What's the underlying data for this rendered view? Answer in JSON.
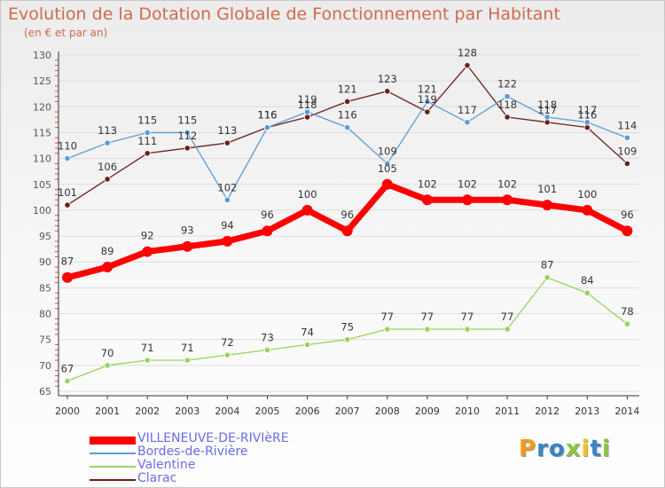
{
  "chart_data": {
    "type": "line",
    "title": "Evolution de la Dotation Globale de Fonctionnement par Habitant",
    "subtitle": "(en € et par an)",
    "x": [
      2000,
      2001,
      2002,
      2003,
      2004,
      2005,
      2006,
      2007,
      2008,
      2009,
      2010,
      2011,
      2012,
      2013,
      2014
    ],
    "ylim": [
      65,
      130
    ],
    "yticks": [
      65,
      70,
      75,
      80,
      85,
      90,
      95,
      100,
      105,
      110,
      115,
      120,
      125,
      130
    ],
    "grid": "horizontal",
    "legend_position": "bottom-left",
    "series": [
      {
        "name": "VILLENEUVE-DE-RIVIèRE",
        "color": "#ff0000",
        "values": [
          87,
          89,
          92,
          93,
          94,
          96,
          100,
          96,
          105,
          102,
          102,
          102,
          101,
          100,
          96
        ]
      },
      {
        "name": "Bordes-de-Rivière",
        "color": "#5b9bd5",
        "values": [
          110,
          113,
          115,
          115,
          102,
          116,
          119,
          116,
          109,
          121,
          117,
          122,
          118,
          117,
          114
        ]
      },
      {
        "name": "Valentine",
        "color": "#97d35d",
        "values": [
          67,
          70,
          71,
          71,
          72,
          73,
          74,
          75,
          77,
          77,
          77,
          77,
          87,
          84,
          78
        ]
      },
      {
        "name": "Clarac",
        "color": "#6d1d1d",
        "values": [
          101,
          106,
          111,
          112,
          113,
          116,
          118,
          121,
          123,
          119,
          128,
          118,
          117,
          116,
          109
        ]
      }
    ]
  },
  "logo": {
    "letters": [
      {
        "char": "P",
        "color": "#f39a1c"
      },
      {
        "char": "r",
        "color": "#3c84c6"
      },
      {
        "char": "o",
        "color": "#3c84c6"
      },
      {
        "char": "x",
        "color": "#8dc63f"
      },
      {
        "char": "i",
        "color": "#f3c21c"
      },
      {
        "char": "t",
        "color": "#3c84c6"
      },
      {
        "char": "i",
        "color": "#8dc63f"
      }
    ]
  }
}
